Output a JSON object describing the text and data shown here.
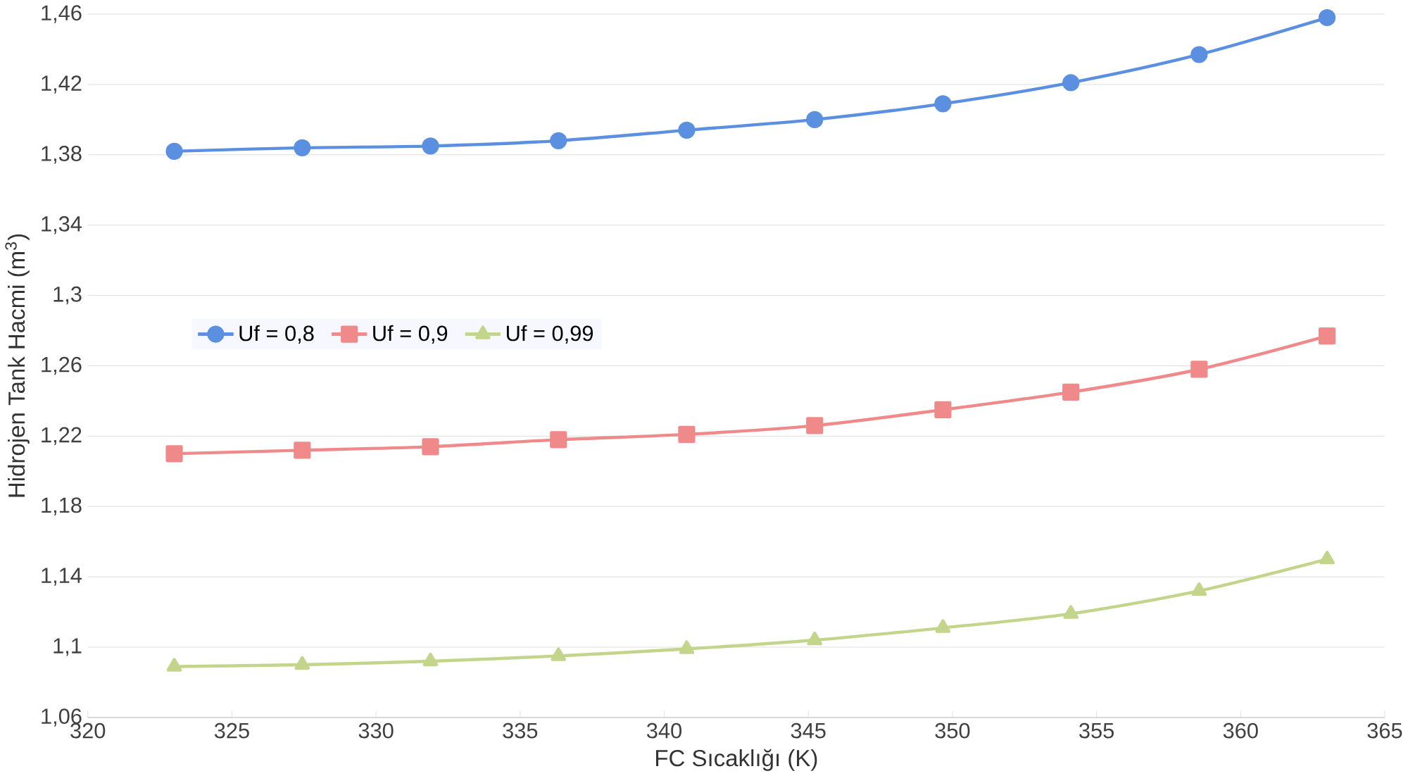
{
  "chart_data": {
    "type": "line",
    "xlabel": "FC Sıcaklığı (K)",
    "ylabel": "Hidrojen Tank Hacmi (m$^{3}$)",
    "x": [
      323,
      327.44,
      331.89,
      336.33,
      340.78,
      345.22,
      349.67,
      354.11,
      358.56,
      363
    ],
    "series": [
      {
        "name": "Uf = 0,8",
        "color": "#5b8fdf",
        "marker": "circle",
        "values": [
          1.382,
          1.384,
          1.385,
          1.388,
          1.394,
          1.4,
          1.409,
          1.421,
          1.437,
          1.458
        ]
      },
      {
        "name": "Uf = 0,9",
        "color": "#f08a8a",
        "marker": "square",
        "values": [
          1.21,
          1.212,
          1.214,
          1.218,
          1.221,
          1.226,
          1.235,
          1.245,
          1.258,
          1.277
        ]
      },
      {
        "name": "Uf = 0,99",
        "color": "#c2d58a",
        "marker": "triangle",
        "values": [
          1.089,
          1.09,
          1.092,
          1.095,
          1.099,
          1.104,
          1.111,
          1.119,
          1.132,
          1.15
        ]
      }
    ],
    "xlim": [
      320,
      365
    ],
    "xticks": [
      320,
      325,
      330,
      335,
      340,
      345,
      350,
      355,
      360,
      365
    ],
    "ylim": [
      1.06,
      1.46
    ],
    "yticks": [
      {
        "value": 1.06,
        "label": "1,06"
      },
      {
        "value": 1.1,
        "label": "1,1"
      },
      {
        "value": 1.14,
        "label": "1,14"
      },
      {
        "value": 1.18,
        "label": "1,18"
      },
      {
        "value": 1.22,
        "label": "1,22"
      },
      {
        "value": 1.26,
        "label": "1,26"
      },
      {
        "value": 1.3,
        "label": "1,3"
      },
      {
        "value": 1.34,
        "label": "1,34"
      },
      {
        "value": 1.38,
        "label": "1,38"
      },
      {
        "value": 1.42,
        "label": "1,42"
      },
      {
        "value": 1.46,
        "label": "1,46"
      }
    ],
    "grid": "y",
    "legend": "left",
    "line_style": "solid"
  }
}
